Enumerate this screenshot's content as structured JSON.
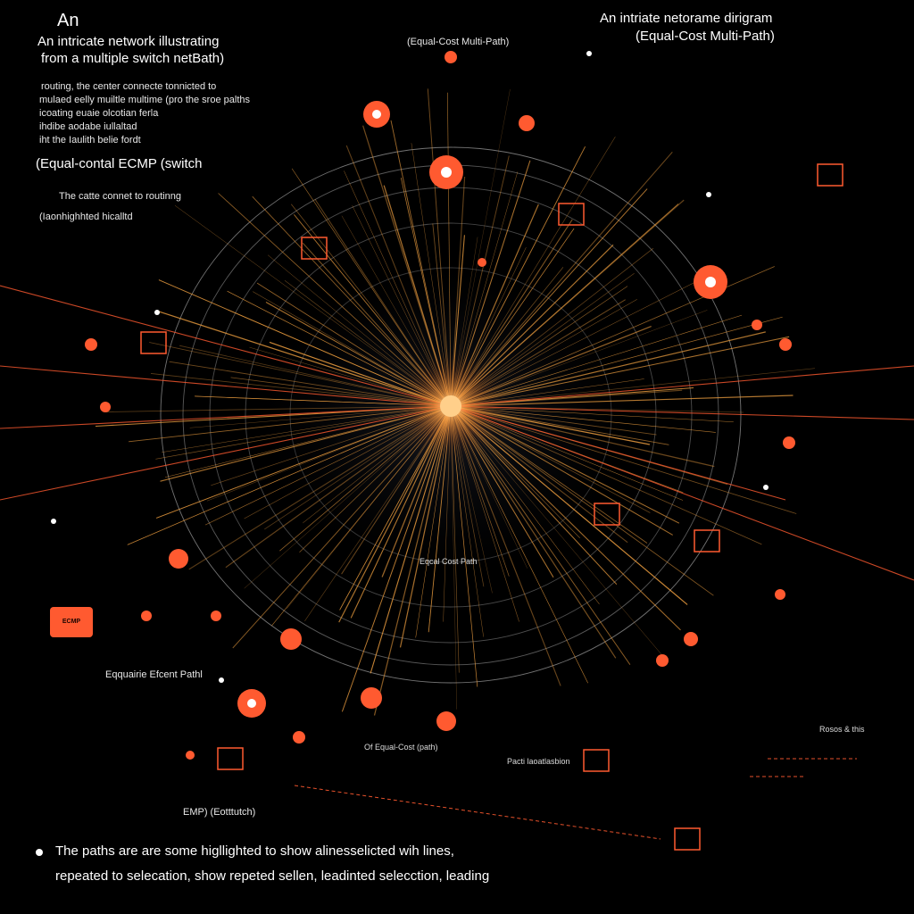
{
  "colors": {
    "background": "#000000",
    "accent": "#ff5a30",
    "path": "#f0a040",
    "ring": "#ffffff",
    "label": "#ffffff"
  },
  "header": {
    "left_title_short": "An",
    "left_title_line1": "An  intricate network illustrating",
    "left_title_line2": "from  a  multiple switch netBath)",
    "right_title_line1": "An  intriate netorame dirigram",
    "right_title_line2": "(Equal-Cost Multi-Path)",
    "center_top_label": "(Equal-Cost Multi-Path)"
  },
  "left_description": {
    "line1": "routing, the center  connecte tonnicted to",
    "line2": "mulaed eelly muiltle multime (pro the sroe palths",
    "line3": "icoating euaie olcotian ferla",
    "line4": "ihdibe  aodabe iullaltad",
    "line5": "iht the Iaulith belie fordt",
    "line6": "(Equal-contal ECMP (switch",
    "line7": "The catte connet to routinng",
    "line8": "(Iaonhighhted hicalltd"
  },
  "inline_labels": {
    "equal_cost_left": "Eqquairie Efcent Pathl",
    "center_path": "Eqcal Cost Path",
    "ecmp_bottom": "EMP) (Eotttutch)",
    "of_path": "Of Equal-Cost (path)",
    "path_path": "Pacti  laoatlasbion",
    "right_bottom": "Rosos  & this"
  },
  "badge": {
    "label": "ECMP"
  },
  "footer": {
    "line1": "The paths are are some higllighted to show alinesselicted wih lines,",
    "line2": "repeated to  selecation, show repeted sellen, leadinted selecction,  leading"
  }
}
